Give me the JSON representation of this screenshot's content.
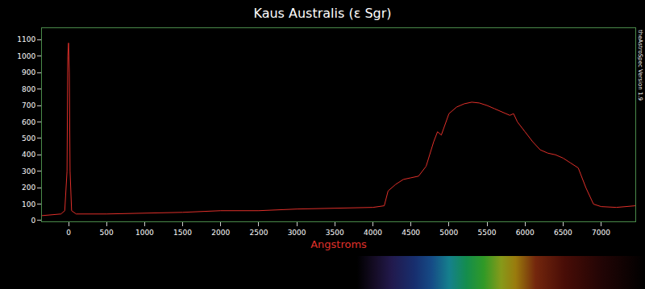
{
  "chart_data": {
    "type": "line",
    "title": "Kaus Australis (ε Sgr)",
    "x_label": "Angstroms",
    "annotation": "theAstroSpec Version 1.9",
    "x": [
      -350,
      -200,
      -100,
      -50,
      -20,
      -10,
      0,
      10,
      20,
      40,
      100,
      500,
      1000,
      1500,
      2000,
      2500,
      3000,
      3500,
      4000,
      4150,
      4200,
      4300,
      4400,
      4500,
      4600,
      4700,
      4800,
      4850,
      4900,
      5000,
      5100,
      5200,
      5300,
      5400,
      5500,
      5600,
      5700,
      5800,
      5850,
      5900,
      6000,
      6100,
      6200,
      6300,
      6400,
      6500,
      6600,
      6700,
      6800,
      6900,
      7000,
      7200,
      7450
    ],
    "series": [
      {
        "name": "Kaus Australis (ε Sgr)",
        "color": "#e0302a",
        "values": [
          30,
          35,
          40,
          60,
          300,
          1000,
          1080,
          900,
          300,
          60,
          40,
          40,
          45,
          50,
          60,
          60,
          70,
          75,
          80,
          90,
          180,
          220,
          250,
          260,
          270,
          330,
          480,
          540,
          520,
          650,
          690,
          710,
          720,
          715,
          700,
          680,
          660,
          640,
          650,
          600,
          540,
          480,
          430,
          410,
          400,
          380,
          350,
          320,
          200,
          100,
          85,
          80,
          90
        ]
      }
    ],
    "xlim": [
      -350,
      7450
    ],
    "ylim": [
      -5,
      1170
    ],
    "xticks": [
      0,
      500,
      1000,
      1500,
      2000,
      2500,
      3000,
      3500,
      4000,
      4500,
      5000,
      5500,
      6000,
      6500,
      7000
    ],
    "yticks": [
      0,
      100,
      200,
      300,
      400,
      500,
      600,
      700,
      800,
      900,
      1000,
      1100
    ],
    "grid": false
  }
}
